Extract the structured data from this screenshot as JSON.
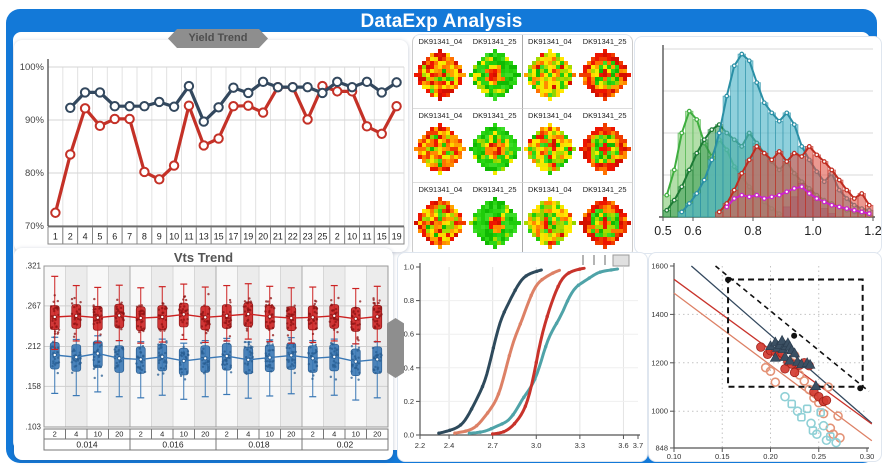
{
  "title": "DataExp Analysis",
  "banners": {
    "trend": "Yield Trend"
  },
  "colors": {
    "frame_blue": "#1379d8",
    "navy": "#33485e",
    "red": "#c43127",
    "teal": "#45aec4",
    "light_green": "#7dc87d",
    "dark_green": "#2f9e4f",
    "magenta": "#cc22cc",
    "salmon": "#dd8166",
    "teal_line": "#4fa3a8"
  },
  "chart_data": [
    {
      "id": "yield_trend",
      "type": "line",
      "title": "Yield Trend",
      "categories": [
        "1",
        "2",
        "4",
        "5",
        "6",
        "7",
        "8",
        "9",
        "10",
        "11",
        "13",
        "15",
        "17",
        "19",
        "20",
        "21",
        "22",
        "23",
        "25",
        "2",
        "10",
        "11",
        "15",
        "19"
      ],
      "yticks": [
        "100%",
        "90%",
        "80%",
        "70%"
      ],
      "ylim": [
        70,
        100
      ],
      "series": [
        {
          "name": "lot-red",
          "color": "#c43127",
          "values": [
            72.5,
            83.5,
            92.2,
            88.9,
            90.2,
            90.2,
            80.2,
            78.8,
            81.4,
            92.7,
            85.2,
            86.5,
            92.6,
            92.7,
            91.4,
            96.2,
            96.2,
            90.1,
            96.4,
            95.4,
            95.4,
            88.8,
            87.4,
            92.6
          ]
        },
        {
          "name": "lot-navy",
          "color": "#33485e",
          "values": [
            null,
            92.3,
            95.2,
            95.2,
            92.6,
            92.6,
            92.6,
            93.4,
            92.5,
            96.4,
            89.7,
            92.4,
            96.1,
            95.1,
            97.2,
            96.2,
            96.2,
            96.2,
            95.1,
            97.2,
            96.2,
            97.2,
            95.2,
            97.1
          ]
        }
      ]
    },
    {
      "id": "wafer_maps",
      "type": "heatmap",
      "labels": [
        [
          "DK91341_04",
          "DK91341_25",
          "DK91341_04",
          "DK91341_25"
        ],
        [
          "DK91341_04",
          "DK91341_25",
          "DK91341_04",
          "DK91341_25"
        ],
        [
          "DK91341_04",
          "DK91341_25",
          "DK91341_04",
          "DK91341_25"
        ]
      ],
      "column_patterns": [
        "hot-mottled",
        "green-hot-center",
        "warm-mottled",
        "red-ring-green-center"
      ]
    },
    {
      "id": "distribution",
      "type": "histogram",
      "xticks": [
        "0.5",
        "0.6",
        "0.8",
        "1.0",
        "1.2"
      ],
      "xtick_values": [
        0.5,
        0.6,
        0.8,
        1.0,
        1.2
      ],
      "xlim": [
        0.5,
        1.2
      ],
      "bin_width": 0.025,
      "series": [
        {
          "name": "light-green",
          "fill": "#9ad48e",
          "stroke": "#3fae3f",
          "opacity": 0.75,
          "markers": true,
          "bins": [
            0.13,
            0.28,
            0.5,
            0.63,
            0.58,
            0.44,
            0.36,
            0.46,
            0.4,
            0.3,
            0.24,
            0.18,
            0.13,
            0.09,
            0.05,
            0.02,
            0,
            0,
            0,
            0,
            0,
            0,
            0,
            0,
            0,
            0,
            0,
            0
          ]
        },
        {
          "name": "dark-green",
          "fill": "#3f9e57",
          "stroke": "#1d7a35",
          "opacity": 0.6,
          "markers": true,
          "bins": [
            0.04,
            0.1,
            0.18,
            0.28,
            0.38,
            0.46,
            0.52,
            0.55,
            0.5,
            0.46,
            0.42,
            0.5,
            0.44,
            0.38,
            0.33,
            0.28,
            0.33,
            0.26,
            0.21,
            0.17,
            0.13,
            0.1,
            0.08,
            0.06,
            0.04,
            0.03,
            0.02,
            0.01
          ]
        },
        {
          "name": "teal",
          "fill": "#53b7c9",
          "stroke": "#2a8fa5",
          "opacity": 0.65,
          "markers": true,
          "bins": [
            0,
            0,
            0.03,
            0.08,
            0.14,
            0.22,
            0.34,
            0.5,
            0.72,
            0.9,
            0.97,
            0.93,
            0.8,
            0.68,
            0.62,
            0.57,
            0.62,
            0.55,
            0.42,
            0.34,
            0.27,
            0.21,
            0.26,
            0.16,
            0.11,
            0.07,
            0.05,
            0.04
          ]
        },
        {
          "name": "navy-patch",
          "fill": "#5a6ba0",
          "stroke": "#44517e",
          "opacity": 0.6,
          "markers": false,
          "bins": [
            0,
            0,
            0,
            0,
            0,
            0,
            0,
            0,
            0,
            0,
            0,
            0,
            0,
            0,
            0,
            0,
            0.06,
            0.12,
            0.2,
            0.16,
            0.1,
            0.05,
            0.02,
            0,
            0,
            0,
            0,
            0
          ]
        },
        {
          "name": "red",
          "fill": "#e05548",
          "stroke": "#c02c20",
          "opacity": 0.6,
          "markers": true,
          "bins": [
            0,
            0,
            0,
            0,
            0,
            0,
            0,
            0.03,
            0.08,
            0.16,
            0.26,
            0.34,
            0.42,
            0.38,
            0.34,
            0.39,
            0.33,
            0.38,
            0.36,
            0.42,
            0.37,
            0.33,
            0.28,
            0.22,
            0.16,
            0.11,
            0.14,
            0.07
          ]
        },
        {
          "name": "magenta",
          "fill": "none",
          "stroke": "#cc22cc",
          "opacity": 1,
          "line_only": true,
          "markers": true,
          "bins": [
            0,
            0,
            0,
            0,
            0,
            0,
            0,
            0,
            0.06,
            0.11,
            0.13,
            0.12,
            0.13,
            0.11,
            0.12,
            0.13,
            0.15,
            0.17,
            0.18,
            0.14,
            0.11,
            0.09,
            0.07,
            0.06,
            0.05,
            0.04,
            0.03,
            0.02
          ]
        }
      ]
    },
    {
      "id": "vts_trend",
      "type": "box",
      "title": "Vts Trend",
      "yticks": [
        ".321",
        ".267",
        ".212",
        ".158",
        ".103"
      ],
      "ytick_values": [
        0.321,
        0.267,
        0.212,
        0.158,
        0.103
      ],
      "sub_labels": [
        "2",
        "4",
        "10",
        "20"
      ],
      "group_labels": [
        "0.014",
        "0.016",
        "0.018",
        "0.02"
      ],
      "red_medians": [
        0.252,
        0.2535,
        0.251,
        0.254,
        0.2505,
        0.252,
        0.2555,
        0.2515,
        0.2535,
        0.256,
        0.2525,
        0.2505,
        0.2515,
        0.2535,
        0.2495,
        0.2525
      ],
      "blue_medians": [
        0.2005,
        0.1975,
        0.2025,
        0.196,
        0.1945,
        0.198,
        0.1925,
        0.196,
        0.199,
        0.194,
        0.197,
        0.2,
        0.196,
        0.198,
        0.1915,
        0.1945
      ],
      "red_color": "#cc2222",
      "blue_color": "#3a78b5"
    },
    {
      "id": "cdf",
      "type": "line",
      "xticks": [
        "2.2",
        "2.4",
        "2.7",
        "3.0",
        "3.3",
        "3.6",
        "3.7"
      ],
      "xtick_values": [
        2.2,
        2.4,
        2.7,
        3.0,
        3.3,
        3.6,
        3.7
      ],
      "yticks": [
        "0.0",
        "0.2",
        "0.4",
        "0.6",
        "0.8",
        "1.0"
      ],
      "xlim": [
        2.2,
        3.7
      ],
      "ylim": [
        0,
        1
      ],
      "curves": [
        {
          "name": "navy",
          "color": "#2e4a5c",
          "x0": 2.7,
          "s": 0.082,
          "from": 2.33,
          "to": 3.04
        },
        {
          "name": "salmon",
          "color": "#dd8166",
          "x0": 2.83,
          "s": 0.085,
          "from": 2.44,
          "to": 3.17
        },
        {
          "name": "teal",
          "color": "#4fa3a8",
          "x0": 3.06,
          "s": 0.112,
          "from": 2.54,
          "to": 3.56
        },
        {
          "name": "red",
          "color": "#c8332b",
          "x0": 3.02,
          "s": 0.063,
          "from": 2.7,
          "to": 3.33
        }
      ]
    },
    {
      "id": "scatter",
      "type": "scatter",
      "xticks": [
        "0.10",
        "0.15",
        "0.20",
        "0.25",
        "0.30"
      ],
      "xtick_values": [
        0.1,
        0.15,
        0.2,
        0.25,
        0.3
      ],
      "yticks": [
        "1600",
        "1400",
        "1200",
        "1000",
        "848"
      ],
      "ytick_values": [
        1600,
        1400,
        1200,
        1000,
        848
      ],
      "xlim": [
        0.1,
        0.3
      ],
      "ylim": [
        848,
        1600
      ],
      "trend_lines": [
        {
          "name": "navy-fit",
          "color": "#33485e",
          "x1": 0.118,
          "y1": 1600,
          "x2": 0.305,
          "y2": 950
        },
        {
          "name": "red-fit",
          "color": "#c8332b",
          "x1": 0.1,
          "y1": 1545,
          "x2": 0.305,
          "y2": 947
        },
        {
          "name": "salmon-fit",
          "color": "#dd8166",
          "x1": 0.1,
          "y1": 1488,
          "x2": 0.305,
          "y2": 878
        }
      ],
      "dashed_line": {
        "x1": 0.143,
        "y1": 1600,
        "x2": 0.302,
        "y2": 1082,
        "dots": [
          [
            0.156,
            1543
          ],
          [
            0.2245,
            1312
          ],
          [
            0.293,
            1095
          ]
        ]
      },
      "selection_rect": {
        "x1": 0.156,
        "y1": 1101,
        "x2": 0.2955,
        "y2": 1544
      },
      "navy_triangles": [
        [
          0.2,
          1270
        ],
        [
          0.205,
          1285
        ],
        [
          0.207,
          1263
        ],
        [
          0.21,
          1275
        ],
        [
          0.212,
          1292
        ],
        [
          0.213,
          1258
        ],
        [
          0.216,
          1270
        ],
        [
          0.218,
          1282
        ],
        [
          0.22,
          1268
        ],
        [
          0.222,
          1253
        ],
        [
          0.225,
          1240
        ],
        [
          0.215,
          1225
        ],
        [
          0.22,
          1210
        ],
        [
          0.228,
          1205
        ],
        [
          0.232,
          1195
        ],
        [
          0.238,
          1200
        ],
        [
          0.241,
          1193
        ],
        [
          0.247,
          1105
        ],
        [
          0.205,
          1222
        ]
      ],
      "red_dots": [
        [
          0.19,
          1265
        ],
        [
          0.197,
          1235
        ],
        [
          0.2,
          1250
        ],
        [
          0.205,
          1245
        ],
        [
          0.208,
          1228
        ],
        [
          0.212,
          1240
        ],
        [
          0.215,
          1175
        ],
        [
          0.218,
          1205
        ],
        [
          0.222,
          1195
        ],
        [
          0.225,
          1160
        ],
        [
          0.23,
          1190
        ],
        [
          0.235,
          1200
        ],
        [
          0.24,
          1188
        ],
        [
          0.245,
          1080
        ],
        [
          0.25,
          1060
        ],
        [
          0.255,
          1040
        ],
        [
          0.258,
          1045
        ]
      ],
      "salmon_hollow": [
        [
          0.195,
          1180
        ],
        [
          0.2,
          1165
        ],
        [
          0.205,
          1120
        ],
        [
          0.225,
          1230
        ],
        [
          0.23,
          1150
        ],
        [
          0.235,
          1125
        ],
        [
          0.24,
          1090
        ],
        [
          0.245,
          1055
        ],
        [
          0.25,
          1035
        ],
        [
          0.255,
          990
        ],
        [
          0.26,
          1100
        ],
        [
          0.262,
          930
        ],
        [
          0.265,
          905
        ],
        [
          0.27,
          980
        ],
        [
          0.272,
          890
        ]
      ],
      "teal_hollow": [
        [
          0.215,
          1060,
          "c"
        ],
        [
          0.222,
          1030,
          "s"
        ],
        [
          0.228,
          1000,
          "c"
        ],
        [
          0.232,
          975,
          "s"
        ],
        [
          0.238,
          1010,
          "s"
        ],
        [
          0.242,
          950,
          "c"
        ],
        [
          0.244,
          920,
          "s"
        ],
        [
          0.248,
          905,
          "c"
        ],
        [
          0.252,
          995,
          "s"
        ],
        [
          0.255,
          940,
          "c"
        ],
        [
          0.258,
          880,
          "c"
        ],
        [
          0.262,
          895,
          "s"
        ],
        [
          0.268,
          870,
          "c"
        ]
      ]
    }
  ]
}
